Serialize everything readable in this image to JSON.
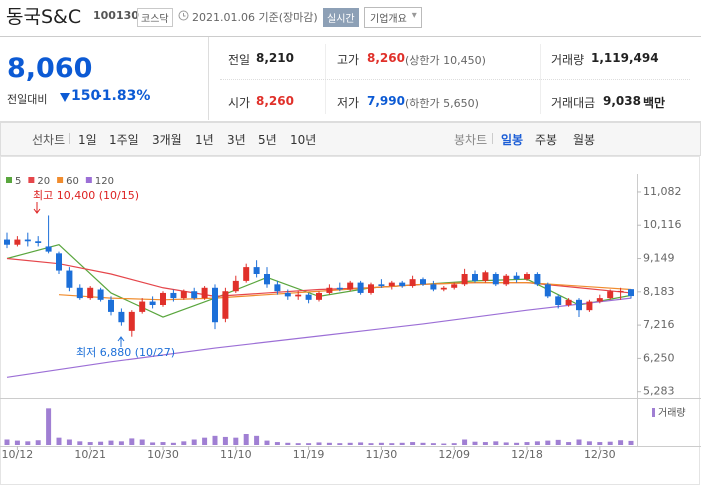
{
  "header": {
    "name": "동국S&C",
    "code": "100130",
    "market": "코스닥",
    "date": "2021.01.06 기준(장마감)",
    "realtime": "실시간",
    "overview": "기업개요"
  },
  "summary": {
    "price": "8,060",
    "change_label": "전일대비",
    "change": "150",
    "change_pct": "-1.83%",
    "stats": [
      {
        "label": "전일",
        "value": "8,210"
      },
      {
        "label": "고가",
        "value": "8,260",
        "note": "(상한가 10,450)"
      },
      {
        "label": "거래량",
        "value": "1,119,494"
      },
      {
        "label": "시가",
        "value": "8,260"
      },
      {
        "label": "저가",
        "value": "7,990",
        "note": "(하한가 5,650)"
      },
      {
        "label": "거래대금",
        "value": "9,038",
        "unit": "백만"
      }
    ]
  },
  "tabs": {
    "line": "선차트",
    "periods": [
      "1일",
      "1주일",
      "3개월",
      "1년",
      "3년",
      "5년",
      "10년"
    ],
    "candle": "봉차트",
    "candle_periods": [
      "일봉",
      "주봉",
      "월봉"
    ]
  },
  "chart_data": {
    "type": "candlestick",
    "categories": [
      null,
      "10/12",
      null,
      null,
      null,
      null,
      null,
      null,
      "10/21",
      null,
      null,
      null,
      null,
      null,
      null,
      "10/30",
      null,
      null,
      null,
      null,
      null,
      null,
      "11/10",
      null,
      null,
      null,
      null,
      null,
      null,
      "11/19",
      null,
      null,
      null,
      null,
      null,
      null,
      "11/30",
      null,
      null,
      null,
      null,
      null,
      null,
      "12/09",
      null,
      null,
      null,
      null,
      null,
      null,
      "12/18",
      null,
      null,
      null,
      null,
      null,
      null,
      "12/30",
      null,
      null,
      null
    ],
    "open": [
      9700,
      9550,
      9700,
      9650,
      9500,
      9300,
      8800,
      8300,
      8000,
      8250,
      7950,
      7600,
      7050,
      7600,
      7900,
      7800,
      8150,
      8000,
      8200,
      8000,
      8300,
      7400,
      8200,
      8500,
      8900,
      8700,
      8400,
      8150,
      8050,
      8100,
      7950,
      8150,
      8300,
      8250,
      8450,
      8150,
      8400,
      8350,
      8450,
      8350,
      8550,
      8400,
      8250,
      8300,
      8400,
      8700,
      8500,
      8700,
      8400,
      8650,
      8550,
      8700,
      8400,
      8050,
      7800,
      7950,
      7650,
      7900,
      8000,
      8200,
      8260
    ],
    "high": [
      9900,
      9800,
      9900,
      9800,
      10400,
      9350,
      8900,
      8400,
      8350,
      8300,
      8050,
      7700,
      7650,
      8000,
      8050,
      8200,
      8250,
      8250,
      8300,
      8350,
      8400,
      8300,
      8650,
      9000,
      9100,
      8900,
      8500,
      8250,
      8200,
      8150,
      8200,
      8400,
      8450,
      8500,
      8500,
      8450,
      8550,
      8500,
      8500,
      8650,
      8600,
      8500,
      8350,
      8450,
      8850,
      8800,
      8800,
      8750,
      8700,
      8750,
      8750,
      8750,
      8450,
      8100,
      8000,
      8000,
      7950,
      8100,
      8250,
      8300,
      8260
    ],
    "low": [
      9450,
      9500,
      9500,
      9500,
      9300,
      8700,
      8200,
      7950,
      7950,
      7900,
      7500,
      7200,
      6880,
      7550,
      7700,
      7750,
      7900,
      7950,
      7950,
      7950,
      7100,
      7300,
      8150,
      8450,
      8600,
      8300,
      8100,
      7950,
      7950,
      7850,
      7900,
      8100,
      8200,
      8200,
      8100,
      8100,
      8300,
      8250,
      8300,
      8300,
      8350,
      8200,
      8200,
      8250,
      8350,
      8450,
      8450,
      8350,
      8350,
      8450,
      8500,
      8350,
      8000,
      7700,
      7750,
      7450,
      7600,
      7850,
      7950,
      7950,
      7990
    ],
    "close": [
      9550,
      9700,
      9650,
      9600,
      9350,
      8800,
      8300,
      8000,
      8300,
      7950,
      7600,
      7300,
      7600,
      7900,
      7800,
      8150,
      8000,
      8200,
      8000,
      8300,
      7300,
      8200,
      8500,
      8900,
      8700,
      8400,
      8200,
      8050,
      8100,
      7950,
      8150,
      8300,
      8250,
      8450,
      8150,
      8400,
      8350,
      8450,
      8350,
      8550,
      8400,
      8250,
      8300,
      8400,
      8700,
      8500,
      8750,
      8400,
      8650,
      8550,
      8700,
      8400,
      8050,
      7800,
      7950,
      7650,
      7900,
      8000,
      8200,
      8210,
      8060
    ],
    "volume": [
      1500000,
      1200000,
      1000000,
      1300000,
      10000000,
      2000000,
      1500000,
      1000000,
      800000,
      900000,
      1200000,
      1000000,
      1800000,
      1500000,
      700000,
      800000,
      600000,
      1000000,
      1500000,
      2000000,
      2500000,
      2200000,
      2000000,
      3000000,
      2500000,
      1200000,
      800000,
      600000,
      500000,
      500000,
      700000,
      600000,
      500000,
      600000,
      700000,
      500000,
      600000,
      500000,
      600000,
      800000,
      600000,
      500000,
      400000,
      500000,
      1500000,
      900000,
      800000,
      1000000,
      700000,
      600000,
      800000,
      1000000,
      1200000,
      1400000,
      800000,
      1500000,
      1000000,
      800000,
      900000,
      1300000,
      1119494
    ],
    "up_color": "#e0302a",
    "down_color": "#1c6fd8",
    "volume_color": "#a07fd3",
    "volume_label": "거래량",
    "volume_ylim": [
      0,
      12000000
    ],
    "ylim": [
      5100,
      11400
    ],
    "yticks": [
      {
        "value": 11082,
        "label": "11,082"
      },
      {
        "value": 10116,
        "label": "10,116"
      },
      {
        "value": 9149,
        "label": "9,149"
      },
      {
        "value": 8183,
        "label": "8,183"
      },
      {
        "value": 7216,
        "label": "7,216"
      },
      {
        "value": 6250,
        "label": "6,250"
      },
      {
        "value": 5283,
        "label": "5,283"
      }
    ],
    "series": [
      {
        "name": "5",
        "color": "#5aa63e",
        "x": [
          0,
          5,
          10,
          15,
          20,
          25,
          30,
          35,
          40,
          45,
          50,
          55,
          60
        ],
        "values": [
          9150,
          9550,
          8150,
          7450,
          8000,
          8600,
          8050,
          8300,
          8400,
          8500,
          8550,
          7800,
          8080
        ]
      },
      {
        "name": "20",
        "color": "#e5464b",
        "x": [
          0,
          5,
          10,
          15,
          20,
          25,
          30,
          35,
          40,
          45,
          50,
          55,
          60
        ],
        "values": [
          9150,
          9000,
          8700,
          8300,
          8050,
          8150,
          8250,
          8300,
          8400,
          8450,
          8450,
          8300,
          8150
        ]
      },
      {
        "name": "60",
        "color": "#f08c2e",
        "x": [
          5,
          10,
          15,
          20,
          25,
          30,
          35,
          40,
          45,
          50,
          55,
          60
        ],
        "values": [
          8100,
          8000,
          7950,
          8000,
          8100,
          8200,
          8300,
          8400,
          8450,
          8450,
          8350,
          8250
        ]
      },
      {
        "name": "120",
        "color": "#9c6fd6",
        "x": [
          0,
          10,
          20,
          30,
          40,
          50,
          60
        ],
        "values": [
          5700,
          6150,
          6550,
          6900,
          7250,
          7650,
          8000
        ]
      }
    ],
    "annotations": [
      {
        "text": "최고 10,400 (10/15)",
        "color": "#d22"
      },
      {
        "text": "최저 6,880 (10/27)",
        "color": "#1c6fd8"
      }
    ]
  }
}
